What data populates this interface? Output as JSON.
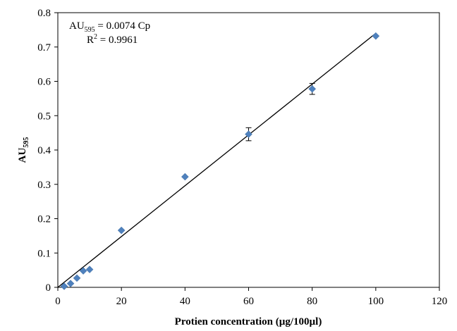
{
  "chart_data": {
    "type": "scatter",
    "xlabel": "Protien concentration (µg/100µl)",
    "ylabel": {
      "main": "AU",
      "sub": "595"
    },
    "xlim": [
      0,
      120
    ],
    "ylim": [
      0,
      0.8
    ],
    "x_ticks": [
      "0",
      "20",
      "40",
      "60",
      "80",
      "100",
      "120"
    ],
    "y_ticks": [
      "0",
      "0.1",
      "0.2",
      "0.3",
      "0.4",
      "0.5",
      "0.6",
      "0.7",
      "0.8"
    ],
    "grid": false,
    "legend": "none",
    "marker_color": "#4f81bd",
    "series": [
      {
        "points": [
          {
            "x": 2,
            "y": 0.003
          },
          {
            "x": 4,
            "y": 0.011
          },
          {
            "x": 6,
            "y": 0.027
          },
          {
            "x": 8,
            "y": 0.048
          },
          {
            "x": 10,
            "y": 0.052
          },
          {
            "x": 20,
            "y": 0.166
          },
          {
            "x": 40,
            "y": 0.322,
            "err": 0.0
          },
          {
            "x": 60,
            "y": 0.446,
            "err": 0.019
          },
          {
            "x": 80,
            "y": 0.578,
            "err": 0.016
          },
          {
            "x": 100,
            "y": 0.732
          }
        ]
      }
    ],
    "trendline": {
      "type": "linear",
      "slope": 0.0074,
      "intercept": 0,
      "x_range": [
        0,
        100
      ]
    },
    "annotations": {
      "equation": {
        "main": "AU",
        "sub": "595",
        "rest": " = 0.0074 Cp"
      },
      "r2": {
        "main": "R",
        "sup": "2",
        "rest": " = 0.9961"
      }
    }
  }
}
